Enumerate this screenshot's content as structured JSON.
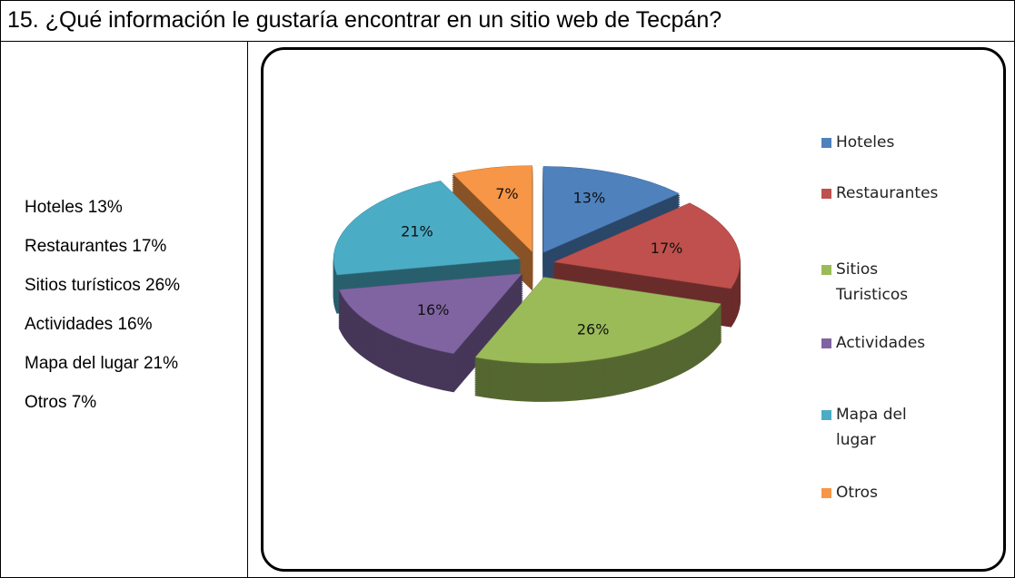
{
  "title": "15. ¿Qué información le gustaría encontrar en un sitio web de Tecpán?",
  "items": [
    "Hoteles 13%",
    "Restaurantes 17%",
    "Sitios turísticos 26%",
    "Actividades 16%",
    "Mapa del lugar 21%",
    "Otros 7%"
  ],
  "chart_data": {
    "type": "pie",
    "categories": [
      "Hoteles",
      "Restaurantes",
      "Sitios Turisticos",
      "Actividades",
      "Mapa del lugar",
      "Otros"
    ],
    "values": [
      13,
      17,
      26,
      16,
      21,
      7
    ],
    "value_labels": [
      "13%",
      "17%",
      "26%",
      "16%",
      "21%",
      "7%"
    ],
    "colors": [
      "#4f81bd",
      "#c0504d",
      "#9bbb59",
      "#8064a2",
      "#4bacc6",
      "#f79646"
    ],
    "legend": "right"
  }
}
